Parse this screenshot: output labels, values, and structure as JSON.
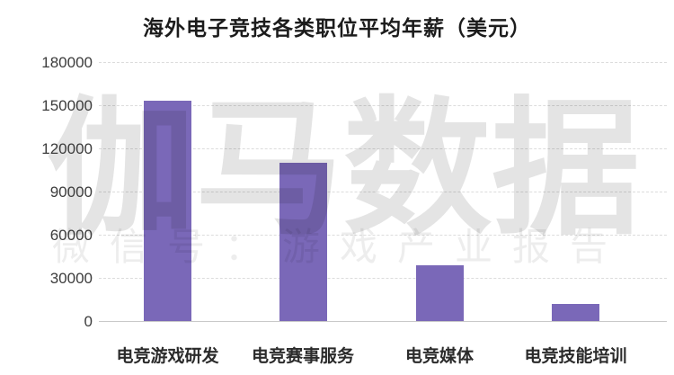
{
  "title": "海外电子竞技各类职位平均年薪（美元）",
  "watermark": {
    "brand": "伽马数据",
    "subtitle": "微信号：游戏产业报告"
  },
  "chart_data": {
    "type": "bar",
    "title": "海外电子竞技各类职位平均年薪（美元）",
    "categories": [
      "电竞游戏研发",
      "电竞赛事服务",
      "电竞媒体",
      "电竞技能培训"
    ],
    "values": [
      153000,
      110000,
      39000,
      12000
    ],
    "xlabel": "",
    "ylabel": "",
    "ylim": [
      0,
      180000
    ],
    "yticks": [
      0,
      30000,
      60000,
      90000,
      120000,
      150000,
      180000
    ],
    "grid": "horizontal-dashed",
    "legend": "none",
    "bar_color": "#7A68B8"
  },
  "colors": {
    "background": "#FFFFFF",
    "bar": "#7A68B8",
    "title_text": "#1C1C1C",
    "axis_text": "#3C3C3C",
    "category_text": "#2B2B2B",
    "gridline": "#DCDCDC",
    "baseline": "#C9C9C9",
    "watermark": "rgba(0,0,0,0.105)",
    "watermark_subtitle": "rgba(0,0,0,0.07)"
  }
}
